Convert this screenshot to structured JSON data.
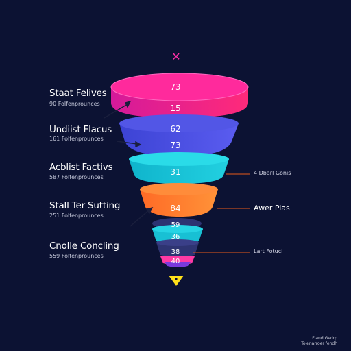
{
  "close_glyph": "✕",
  "stages": [
    {
      "title": "Staat Felives",
      "sub": "90 Folfenprounces",
      "values": [
        "73",
        "15"
      ],
      "color": "#f0208e"
    },
    {
      "title": "Undiist Flacus",
      "sub": "161 Folfenprounces",
      "values": [
        "62",
        "73"
      ],
      "color": "#4b4fe0"
    },
    {
      "title": "Acblist Factivs",
      "sub": "587 Folfenprounces",
      "values": [
        "31"
      ],
      "color": "#18c3d6"
    },
    {
      "title": "Stall Ter Sutting",
      "sub": "251 Folfenprounces",
      "values": [
        "84"
      ],
      "color": "#ff7a2a"
    },
    {
      "title": "Cnolle Concling",
      "sub": "559 Folfenprounces",
      "values": [
        "59",
        "36",
        "38",
        "40"
      ],
      "color": "#2a2f6e"
    }
  ],
  "side_labels": [
    {
      "text": "4 Dbarl Gonis",
      "style": "small"
    },
    {
      "text": "Awer Pias",
      "style": "big"
    },
    {
      "text": "Lart Fotuci",
      "style": "small"
    }
  ],
  "footer": [
    "Fland Gedrp",
    "Tolenarroer fendh"
  ],
  "colors": {
    "background": "#0c1233",
    "accent_pink": "#f0208e",
    "accent_blue": "#4b4fe0",
    "accent_cyan": "#18c3d6",
    "accent_orange": "#ff7a2a",
    "accent_yellow": "#ffe01a"
  }
}
